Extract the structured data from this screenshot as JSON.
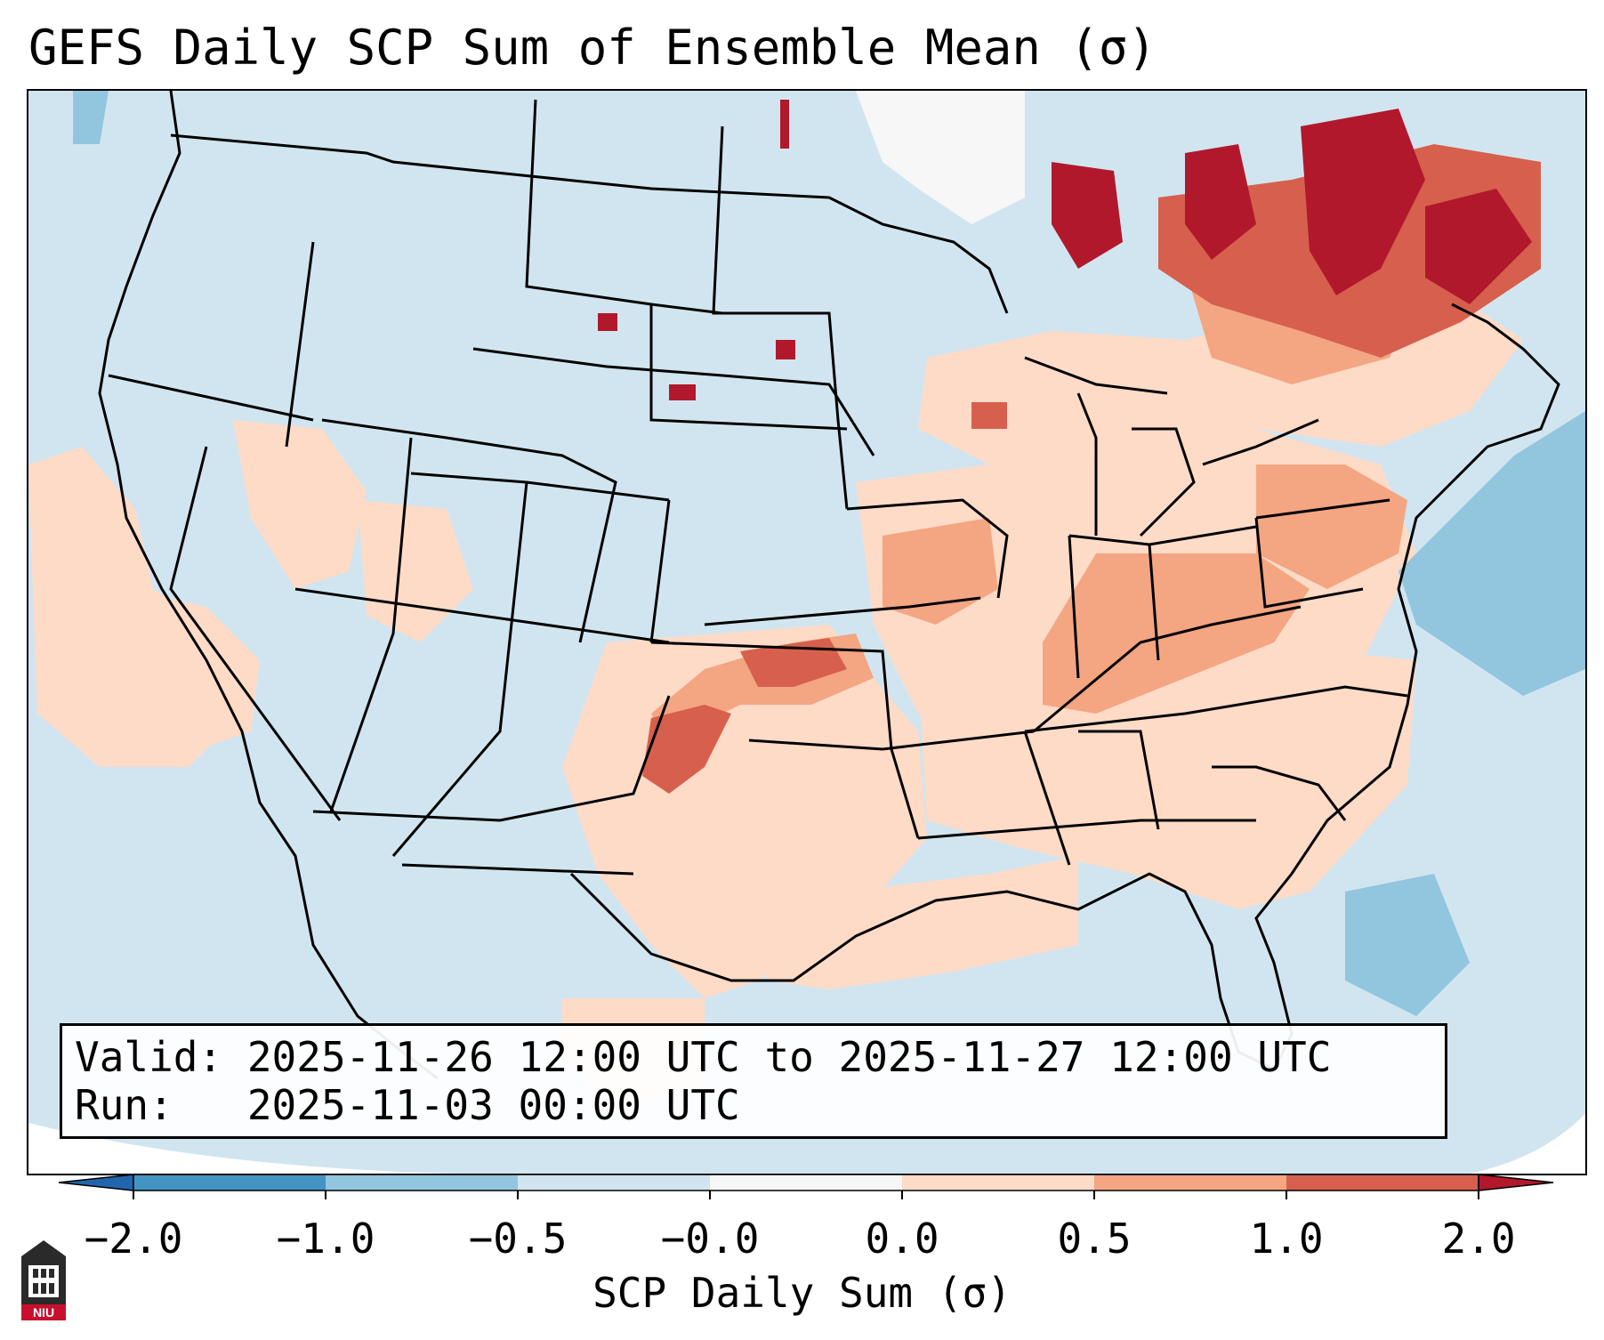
{
  "title": "GEFS Daily SCP Sum of Ensemble Mean (σ)",
  "valid_box": {
    "valid_line": "Valid: 2025-11-26 12:00 UTC to 2025-11-27 12:00 UTC",
    "run_line": "Run:   2025-11-03 00:00 UTC"
  },
  "colorbar": {
    "label": "SCP Daily Sum (σ)",
    "ticks": [
      "−2.0",
      "−1.0",
      "−0.5",
      "−0.0",
      "0.0",
      "0.5",
      "1.0",
      "2.0"
    ],
    "bins": [
      {
        "from": -2.0,
        "to": -1.0,
        "color": "#4393c3"
      },
      {
        "from": -1.0,
        "to": -0.5,
        "color": "#92c5de"
      },
      {
        "from": -0.5,
        "to": -0.0,
        "color": "#d1e5f0"
      },
      {
        "from": -0.0,
        "to": 0.0,
        "color": "#f7f7f7"
      },
      {
        "from": 0.0,
        "to": 0.5,
        "color": "#fddbc7"
      },
      {
        "from": 0.5,
        "to": 1.0,
        "color": "#f4a582"
      },
      {
        "from": 1.0,
        "to": 2.0,
        "color": "#d6604d"
      }
    ],
    "extend_low_color": "#2166ac",
    "extend_high_color": "#b2182b"
  },
  "map": {
    "region": "Contiguous United States",
    "background_color": "#d1e5f0",
    "field": "SCP daily sum anomaly (sigma)",
    "notable_regions": [
      {
        "name": "Southern Plains / Kansas-Oklahoma",
        "level": "1.0 to 2.0"
      },
      {
        "name": "Ohio Valley / Mid-Atlantic",
        "level": "0.5 to 1.0"
      },
      {
        "name": "Quebec / Eastern Canada",
        "level": "above 2.0"
      },
      {
        "name": "Western Atlantic",
        "level": "-1.0 to -0.5"
      }
    ]
  },
  "logo": {
    "text": "NIU",
    "color": "#c8102e"
  }
}
